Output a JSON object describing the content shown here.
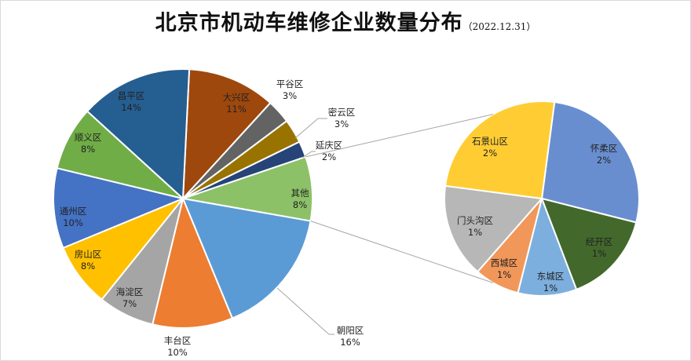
{
  "chart_data": {
    "type": "pie",
    "subtype": "pie-of-pie",
    "title": "北京市机动车维修企业数量分布",
    "subtitle": "（2022.12.31）",
    "main": [
      {
        "name": "大兴区",
        "value": 11,
        "label": "11%",
        "color": "#9E480E"
      },
      {
        "name": "平谷区",
        "value": 3,
        "label": "3%",
        "color": "#636363"
      },
      {
        "name": "密云区",
        "value": 3,
        "label": "3%",
        "color": "#997300"
      },
      {
        "name": "延庆区",
        "value": 2,
        "label": "2%",
        "color": "#264478"
      },
      {
        "name": "其他",
        "value": 8,
        "label": "8%",
        "color": "#8CC168"
      },
      {
        "name": "朝阳区",
        "value": 16,
        "label": "16%",
        "color": "#5B9BD5"
      },
      {
        "name": "丰台区",
        "value": 10,
        "label": "10%",
        "color": "#ED7D31"
      },
      {
        "name": "海淀区",
        "value": 7,
        "label": "7%",
        "color": "#A5A5A5"
      },
      {
        "name": "房山区",
        "value": 8,
        "label": "8%",
        "color": "#FFC000"
      },
      {
        "name": "通州区",
        "value": 10,
        "label": "10%",
        "color": "#4472C4"
      },
      {
        "name": "顺义区",
        "value": 8,
        "label": "8%",
        "color": "#70AD47"
      },
      {
        "name": "昌平区",
        "value": 14,
        "label": "14%",
        "color": "#255E91"
      }
    ],
    "secondary": [
      {
        "name": "怀柔区",
        "value": 2.15,
        "label": "2%",
        "color": "#698ED0"
      },
      {
        "name": "经开区",
        "value": 1.22,
        "label": "1%",
        "color": "#43682B"
      },
      {
        "name": "东城区",
        "value": 0.78,
        "label": "1%",
        "color": "#7CAFDD"
      },
      {
        "name": "西城区",
        "value": 0.6,
        "label": "1%",
        "color": "#F1975A"
      },
      {
        "name": "门头沟区",
        "value": 1.25,
        "label": "1%",
        "color": "#B7B7B7"
      },
      {
        "name": "石景山区",
        "value": 2.0,
        "label": "2%",
        "color": "#FFCD33"
      }
    ]
  }
}
